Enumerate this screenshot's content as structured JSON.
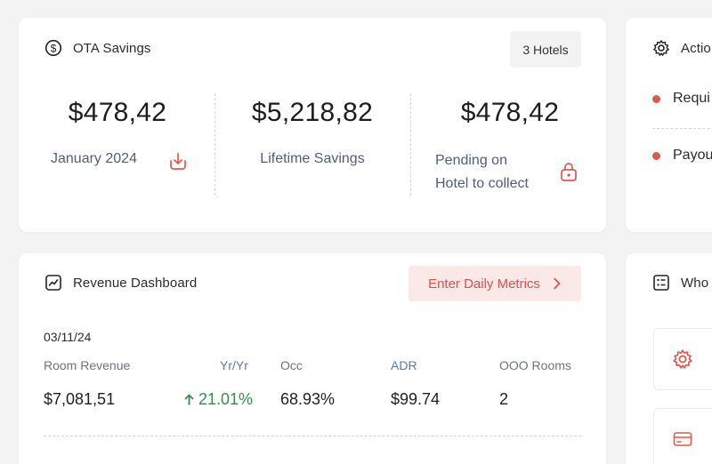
{
  "ota": {
    "title": "OTA Savings",
    "badge": "3 Hotels",
    "stats": [
      {
        "amount": "$478,42",
        "label": "January 2024"
      },
      {
        "amount": "$5,218,82",
        "label": "Lifetime Savings"
      },
      {
        "amount": "$478,42",
        "label_line1": "Pending on",
        "label_line2": "Hotel to collect"
      }
    ]
  },
  "revenue": {
    "title": "Revenue Dashboard",
    "cta_label": "Enter Daily Metrics",
    "date": "03/11/24",
    "columns": [
      {
        "header": "Room Revenue",
        "value": "$7,081,51"
      },
      {
        "header": "Yr/Yr",
        "value": "21.01%"
      },
      {
        "header": "Occ",
        "value": "68.93%"
      },
      {
        "header": "ADR",
        "value": "$99.74"
      },
      {
        "header": "OOO Rooms",
        "value": "2"
      }
    ]
  },
  "actions": {
    "title": "Actio",
    "items": [
      "Requi",
      "Payou"
    ]
  },
  "who": {
    "title": "Who"
  },
  "colors": {
    "accent": "#e0574b",
    "accent_bg": "#fbe9e7",
    "positive": "#3a8a4e",
    "label_blue": "#4e5f7a"
  }
}
